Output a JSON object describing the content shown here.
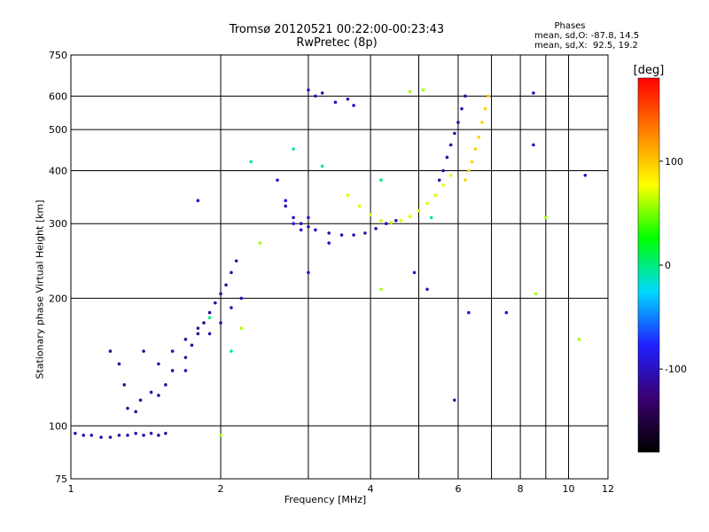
{
  "chart_data": {
    "type": "scatter",
    "title": "Tromsø 20120521 00:22:00-00:23:43",
    "subtitle": "RwPretec (8p)",
    "xlabel": "Frequency [MHz]",
    "ylabel": "Stationary phase Virtual Height [km]",
    "x_scale": "log",
    "y_scale": "log",
    "xlim": [
      1,
      12
    ],
    "ylim": [
      75,
      750
    ],
    "x_ticks": [
      1,
      2,
      4,
      6,
      8,
      10,
      12
    ],
    "x_gridlines": [
      1,
      2,
      3,
      4,
      5,
      6,
      7,
      8,
      9,
      10,
      12
    ],
    "y_ticks": [
      75,
      100,
      200,
      300,
      400,
      500,
      600,
      750
    ],
    "y_gridlines": [
      100,
      200,
      300,
      400,
      500,
      600
    ],
    "grid": true,
    "stats": {
      "heading": "Phases",
      "line_o": "mean, sd,O: -87.8, 14.5",
      "line_x": "mean, sd,X:  92.5, 19.2"
    },
    "colorbar": {
      "label": "[deg]",
      "range": [
        -180,
        180
      ],
      "ticks": [
        100,
        0,
        -100
      ],
      "colors": [
        "#000000",
        "#3a0070",
        "#2020ff",
        "#00d8ff",
        "#00ff00",
        "#ffff00",
        "#ff8000",
        "#ff0000"
      ]
    },
    "series": [
      {
        "phase": -110,
        "points": [
          [
            1.02,
            96
          ],
          [
            1.06,
            95
          ],
          [
            1.1,
            95
          ],
          [
            1.15,
            94
          ],
          [
            1.2,
            94
          ],
          [
            1.25,
            95
          ],
          [
            1.3,
            95
          ],
          [
            1.35,
            96
          ],
          [
            1.4,
            95
          ],
          [
            1.45,
            96
          ],
          [
            1.5,
            95
          ],
          [
            1.55,
            96
          ]
        ]
      },
      {
        "phase": -115,
        "points": [
          [
            1.2,
            150
          ],
          [
            1.25,
            140
          ],
          [
            1.28,
            125
          ],
          [
            1.3,
            110
          ],
          [
            1.35,
            108
          ],
          [
            1.38,
            115
          ],
          [
            1.45,
            120
          ],
          [
            1.5,
            118
          ],
          [
            1.55,
            125
          ],
          [
            1.6,
            135
          ],
          [
            1.7,
            145
          ],
          [
            1.75,
            155
          ],
          [
            1.8,
            165
          ],
          [
            1.85,
            175
          ],
          [
            1.9,
            185
          ],
          [
            1.95,
            195
          ],
          [
            2.0,
            205
          ],
          [
            2.05,
            215
          ],
          [
            2.1,
            230
          ],
          [
            2.15,
            245
          ]
        ]
      },
      {
        "phase": -110,
        "points": [
          [
            1.4,
            150
          ],
          [
            1.5,
            140
          ],
          [
            1.6,
            150
          ],
          [
            1.7,
            160
          ],
          [
            1.8,
            170
          ],
          [
            1.9,
            165
          ],
          [
            2.0,
            175
          ],
          [
            2.1,
            190
          ],
          [
            2.2,
            200
          ]
        ]
      },
      {
        "phase": -105,
        "points": [
          [
            2.7,
            330
          ],
          [
            2.8,
            310
          ],
          [
            2.9,
            300
          ],
          [
            3.0,
            295
          ],
          [
            3.1,
            290
          ],
          [
            3.3,
            285
          ],
          [
            3.5,
            282
          ],
          [
            3.7,
            282
          ],
          [
            3.9,
            285
          ],
          [
            4.1,
            292
          ],
          [
            4.3,
            300
          ],
          [
            4.5,
            305
          ]
        ]
      },
      {
        "phase": -90,
        "points": [
          [
            2.6,
            380
          ],
          [
            2.7,
            340
          ],
          [
            2.8,
            300
          ],
          [
            2.9,
            290
          ],
          [
            3.0,
            310
          ]
        ]
      },
      {
        "phase": -100,
        "points": [
          [
            3.0,
            620
          ],
          [
            3.1,
            600
          ],
          [
            3.2,
            610
          ],
          [
            3.4,
            580
          ],
          [
            3.6,
            590
          ],
          [
            3.7,
            570
          ]
        ]
      },
      {
        "phase": 70,
        "points": [
          [
            3.6,
            350
          ],
          [
            3.8,
            330
          ],
          [
            4.0,
            315
          ],
          [
            4.2,
            305
          ],
          [
            4.4,
            302
          ],
          [
            4.6,
            305
          ],
          [
            4.8,
            312
          ],
          [
            5.0,
            322
          ],
          [
            5.2,
            335
          ],
          [
            5.4,
            350
          ],
          [
            5.6,
            370
          ],
          [
            5.8,
            390
          ]
        ]
      },
      {
        "phase": -110,
        "points": [
          [
            5.5,
            380
          ],
          [
            5.6,
            400
          ],
          [
            5.7,
            430
          ],
          [
            5.8,
            460
          ],
          [
            5.9,
            490
          ],
          [
            6.0,
            520
          ],
          [
            6.1,
            560
          ],
          [
            6.2,
            600
          ]
        ]
      },
      {
        "phase": 95,
        "points": [
          [
            6.2,
            380
          ],
          [
            6.3,
            400
          ],
          [
            6.4,
            420
          ],
          [
            6.5,
            450
          ],
          [
            6.6,
            480
          ],
          [
            6.7,
            520
          ],
          [
            6.8,
            560
          ],
          [
            6.9,
            600
          ]
        ]
      },
      {
        "phase": 0,
        "points": [
          [
            2.3,
            420
          ],
          [
            2.8,
            450
          ],
          [
            3.2,
            410
          ],
          [
            1.9,
            180
          ],
          [
            2.1,
            150
          ],
          [
            4.2,
            380
          ],
          [
            5.3,
            310
          ]
        ]
      },
      {
        "phase": 60,
        "points": [
          [
            2.0,
            95
          ],
          [
            2.2,
            170
          ],
          [
            2.4,
            270
          ],
          [
            4.8,
            615
          ],
          [
            5.1,
            620
          ],
          [
            4.2,
            210
          ],
          [
            8.6,
            205
          ],
          [
            9.0,
            310
          ],
          [
            10.5,
            160
          ]
        ]
      },
      {
        "phase": -100,
        "points": [
          [
            1.7,
            135
          ],
          [
            1.8,
            340
          ],
          [
            3.0,
            230
          ],
          [
            3.3,
            270
          ],
          [
            4.9,
            230
          ],
          [
            5.2,
            210
          ],
          [
            5.9,
            115
          ],
          [
            6.3,
            185
          ],
          [
            7.5,
            185
          ],
          [
            8.5,
            460
          ],
          [
            8.5,
            610
          ],
          [
            10.8,
            390
          ]
        ]
      }
    ]
  }
}
